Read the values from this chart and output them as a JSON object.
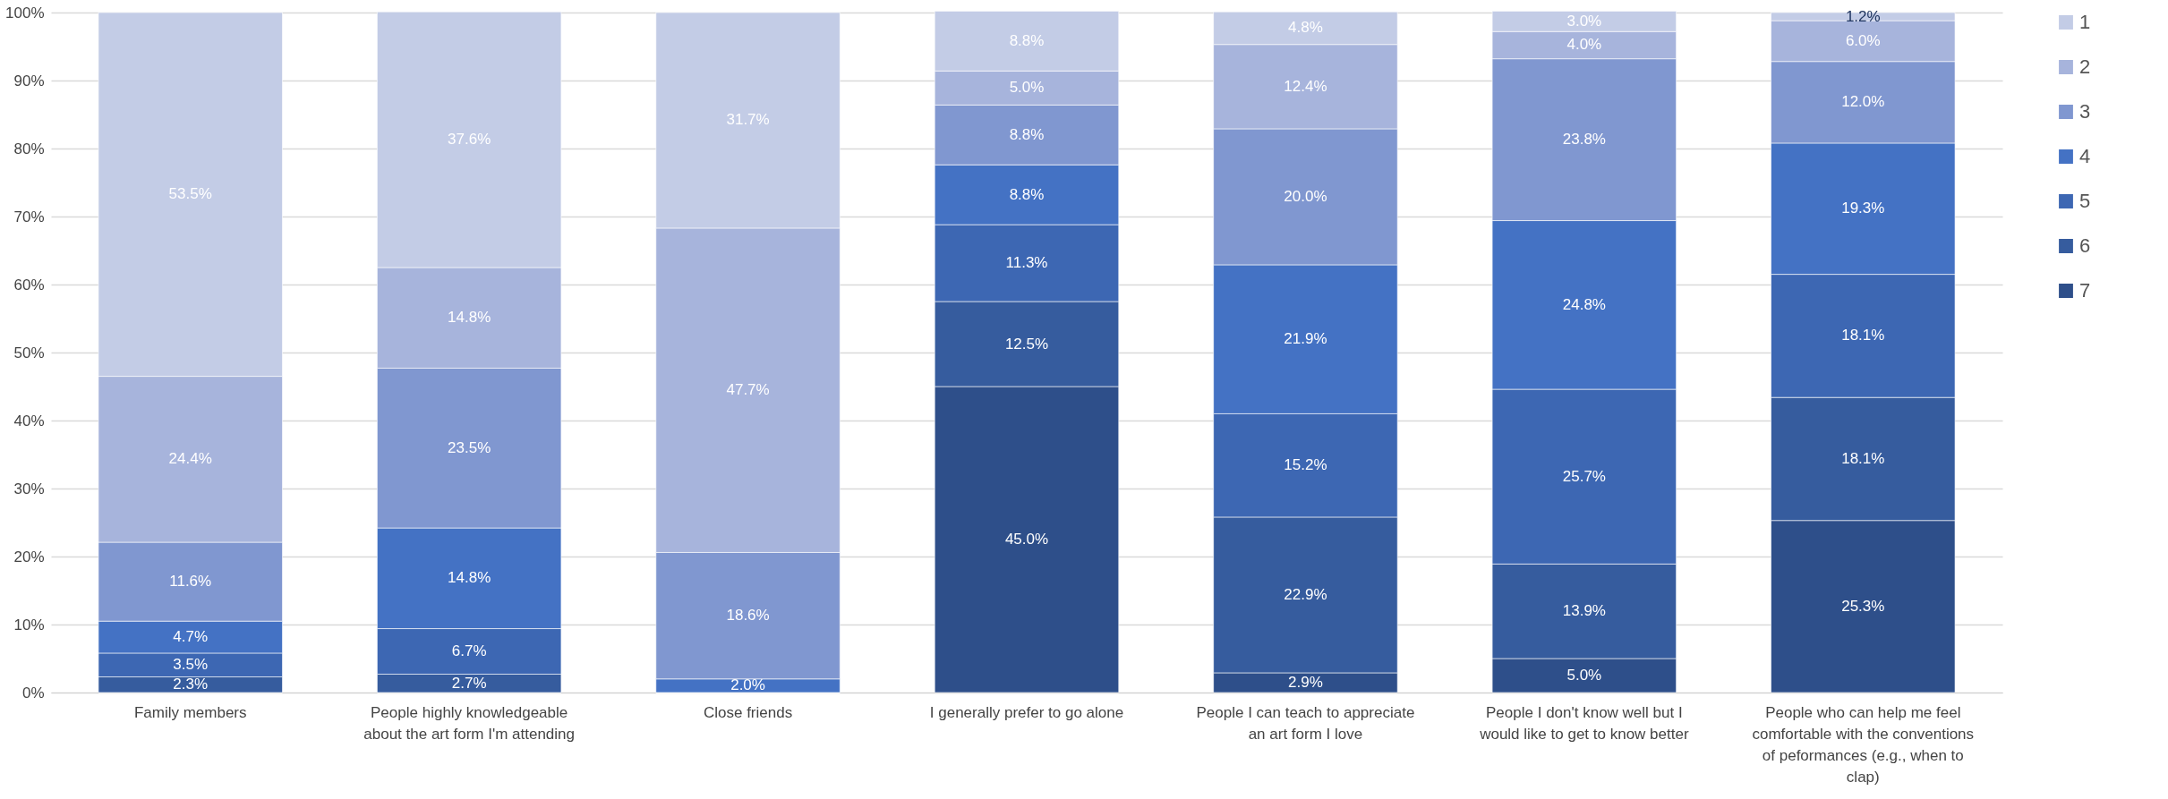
{
  "chart_data": {
    "type": "bar",
    "stacked": true,
    "categories": [
      "Family members",
      "People highly knowledgeable about the art form I'm attending",
      "Close friends",
      "I generally prefer to go alone",
      "People I can teach to appreciate an art form I love",
      "People I don't know well but I would like to get to know better",
      "People who can help me feel comfortable with the conventions of peformances (e.g., when to clap)"
    ],
    "series": [
      {
        "name": "7",
        "color": "#2e4f8a",
        "values": [
          0.0,
          0.0,
          0.0,
          45.0,
          2.9,
          5.0,
          25.3
        ],
        "value_labels": [
          null,
          null,
          null,
          "45.0%",
          "2.9%",
          "5.0%",
          "25.3%"
        ]
      },
      {
        "name": "6",
        "color": "#365c9e",
        "values": [
          2.3,
          2.7,
          0.0,
          12.5,
          22.9,
          13.9,
          18.1
        ],
        "value_labels": [
          "2.3%",
          "2.7%",
          null,
          "12.5%",
          "22.9%",
          "13.9%",
          "18.1%"
        ]
      },
      {
        "name": "5",
        "color": "#3d67b3",
        "values": [
          3.5,
          6.7,
          0.0,
          11.3,
          15.2,
          25.7,
          18.1
        ],
        "value_labels": [
          "3.5%",
          "6.7%",
          null,
          "11.3%",
          "15.2%",
          "25.7%",
          "18.1%"
        ]
      },
      {
        "name": "4",
        "color": "#4472c4",
        "values": [
          4.7,
          14.8,
          2.0,
          8.8,
          21.9,
          24.8,
          19.3
        ],
        "value_labels": [
          "4.7%",
          "14.8%",
          "2.0%",
          "8.8%",
          "21.9%",
          "24.8%",
          "19.3%"
        ]
      },
      {
        "name": "3",
        "color": "#8097d0",
        "values": [
          11.6,
          23.5,
          18.6,
          8.8,
          20.0,
          23.8,
          12.0
        ],
        "value_labels": [
          "11.6%",
          "23.5%",
          "18.6%",
          "8.8%",
          "20.0%",
          "23.8%",
          "12.0%"
        ]
      },
      {
        "name": "2",
        "color": "#a7b4dc",
        "values": [
          24.4,
          14.8,
          47.7,
          5.0,
          12.4,
          4.0,
          6.0
        ],
        "value_labels": [
          "24.4%",
          "14.8%",
          "47.7%",
          "5.0%",
          "12.4%",
          "4.0%",
          "6.0%"
        ]
      },
      {
        "name": "1",
        "color": "#c3cce6",
        "values": [
          53.5,
          37.6,
          31.7,
          8.8,
          4.8,
          3.0,
          1.2
        ],
        "value_labels": [
          "53.5%",
          "37.6%",
          "31.7%",
          "8.8%",
          "4.8%",
          "3.0%",
          "1.2%"
        ]
      }
    ],
    "ylim": [
      0,
      100
    ],
    "yticks": [
      {
        "value": 0,
        "label": "0%"
      },
      {
        "value": 10,
        "label": "10%"
      },
      {
        "value": 20,
        "label": "20%"
      },
      {
        "value": 30,
        "label": "30%"
      },
      {
        "value": 40,
        "label": "40%"
      },
      {
        "value": 50,
        "label": "50%"
      },
      {
        "value": 60,
        "label": "60%"
      },
      {
        "value": 70,
        "label": "70%"
      },
      {
        "value": 80,
        "label": "80%"
      },
      {
        "value": 90,
        "label": "90%"
      },
      {
        "value": 100,
        "label": "100%"
      }
    ],
    "grid": "y",
    "legend": "right"
  }
}
